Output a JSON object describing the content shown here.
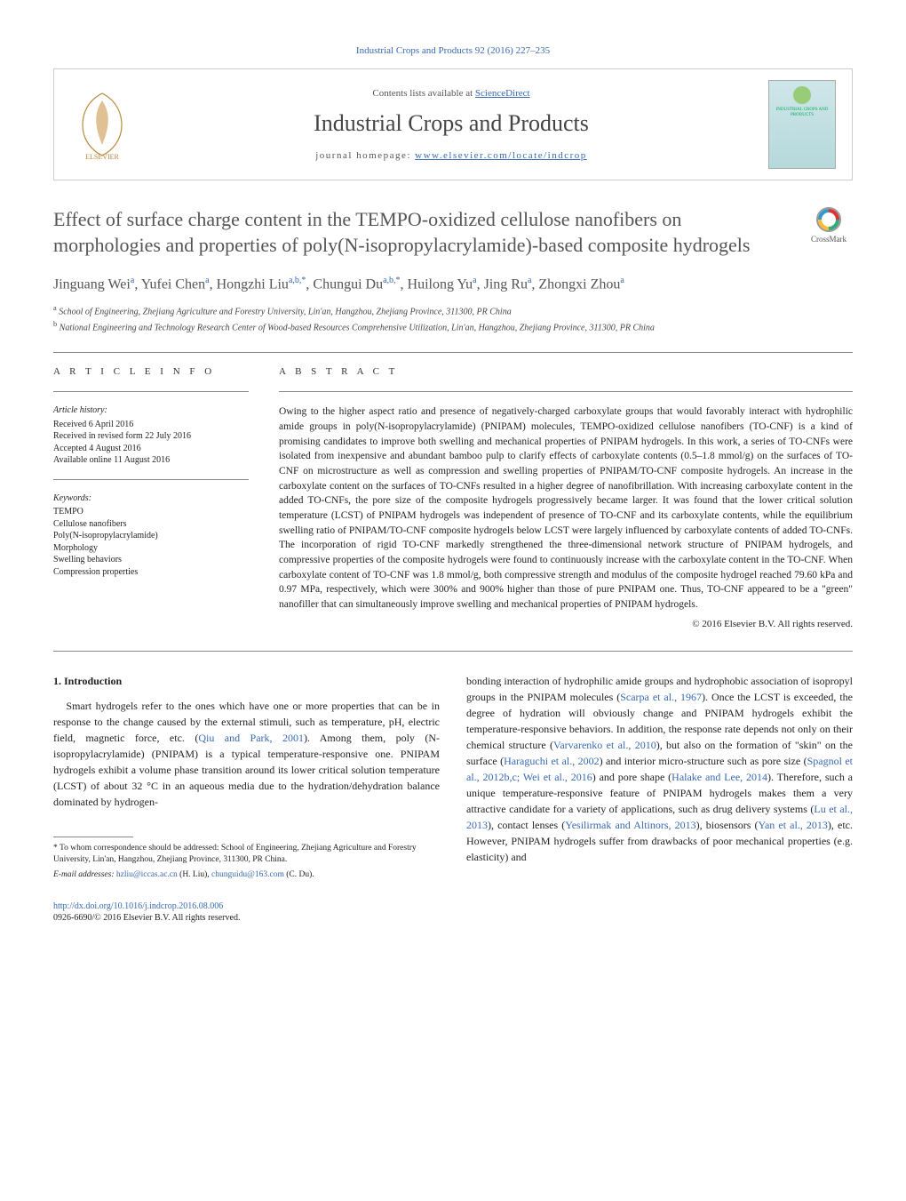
{
  "header": {
    "citation": "Industrial Crops and Products 92 (2016) 227–235",
    "contents_prefix": "Contents lists available at ",
    "contents_link": "ScienceDirect",
    "journal_name": "Industrial Crops and Products",
    "homepage_prefix": "journal homepage: ",
    "homepage_link": "www.elsevier.com/locate/indcrop",
    "cover_text": "INDUSTRIAL CROPS AND PRODUCTS"
  },
  "crossmark_label": "CrossMark",
  "title": "Effect of surface charge content in the TEMPO-oxidized cellulose nanofibers on morphologies and properties of poly(N-isopropylacrylamide)-based composite hydrogels",
  "authors_html": "Jinguang Wei<sup>a</sup>, Yufei Chen<sup>a</sup>, Hongzhi Liu<sup>a,b,*</sup>, Chungui Du<sup>a,b,*</sup>, Huilong Yu<sup>a</sup>, Jing Ru<sup>a</sup>, Zhongxi Zhou<sup>a</sup>",
  "affiliations": {
    "a": "School of Engineering, Zhejiang Agriculture and Forestry University, Lin'an, Hangzhou, Zhejiang Province, 311300, PR China",
    "b": "National Engineering and Technology Research Center of Wood-based Resources Comprehensive Utilization, Lin'an, Hangzhou, Zhejiang Province, 311300, PR China"
  },
  "info": {
    "heading": "A R T I C L E    I N F O",
    "history_label": "Article history:",
    "history": [
      "Received 6 April 2016",
      "Received in revised form 22 July 2016",
      "Accepted 4 August 2016",
      "Available online 11 August 2016"
    ],
    "keywords_label": "Keywords:",
    "keywords": [
      "TEMPO",
      "Cellulose nanofibers",
      "Poly(N-isopropylacrylamide)",
      "Morphology",
      "Swelling behaviors",
      "Compression properties"
    ]
  },
  "abstract": {
    "heading": "A B S T R A C T",
    "text": "Owing to the higher aspect ratio and presence of negatively-charged carboxylate groups that would favorably interact with hydrophilic amide groups in poly(N-isopropylacrylamide) (PNIPAM) molecules, TEMPO-oxidized cellulose nanofibers (TO-CNF) is a kind of promising candidates to improve both swelling and mechanical properties of PNIPAM hydrogels. In this work, a series of TO-CNFs were isolated from inexpensive and abundant bamboo pulp to clarify effects of carboxylate contents (0.5–1.8 mmol/g) on the surfaces of TO-CNF on microstructure as well as compression and swelling properties of PNIPAM/TO-CNF composite hydrogels. An increase in the carboxylate content on the surfaces of TO-CNFs resulted in a higher degree of nanofibrillation. With increasing carboxylate content in the added TO-CNFs, the pore size of the composite hydrogels progressively became larger. It was found that the lower critical solution temperature (LCST) of PNIPAM hydrogels was independent of presence of TO-CNF and its carboxylate contents, while the equilibrium swelling ratio of PNIPAM/TO-CNF composite hydrogels below LCST were largely influenced by carboxylate contents of added TO-CNFs. The incorporation of rigid TO-CNF markedly strengthened the three-dimensional network structure of PNIPAM hydrogels, and compressive properties of the composite hydrogels were found to continuously increase with the carboxylate content in the TO-CNF. When carboxylate content of TO-CNF was 1.8 mmol/g, both compressive strength and modulus of the composite hydrogel reached 79.60 kPa and 0.97 MPa, respectively, which were 300% and 900% higher than those of pure PNIPAM one. Thus, TO-CNF appeared to be a \"green\" nanofiller that can simultaneously improve swelling and mechanical properties of PNIPAM hydrogels.",
    "copyright": "© 2016 Elsevier B.V. All rights reserved."
  },
  "body": {
    "heading": "1. Introduction",
    "left": "Smart hydrogels refer to the ones which have one or more properties that can be in response to the change caused by the external stimuli, such as temperature, pH, electric field, magnetic force, etc. (Qiu and Park, 2001). Among them, poly (N-isopropylacrylamide) (PNIPAM) is a typical temperature-responsive one. PNIPAM hydrogels exhibit a volume phase transition around its lower critical solution temperature (LCST) of about 32 °C in an aqueous media due to the hydration/dehydration balance dominated by hydrogen-",
    "right": "bonding interaction of hydrophilic amide groups and hydrophobic association of isopropyl groups in the PNIPAM molecules (Scarpa et al., 1967). Once the LCST is exceeded, the degree of hydration will obviously change and PNIPAM hydrogels exhibit the temperature-responsive behaviors. In addition, the response rate depends not only on their chemical structure (Varvarenko et al., 2010), but also on the formation of \"skin\" on the surface (Haraguchi et al., 2002) and interior micro-structure such as pore size (Spagnol et al., 2012b,c; Wei et al., 2016) and pore shape (Halake and Lee, 2014). Therefore, such a unique temperature-responsive feature of PNIPAM hydrogels makes them a very attractive candidate for a variety of applications, such as drug delivery systems (Lu et al., 2013), contact lenses (Yesilirmak and Altinors, 2013), biosensors (Yan et al., 2013), etc. However, PNIPAM hydrogels suffer from drawbacks of poor mechanical properties (e.g. elasticity) and",
    "left_links": [
      "Qiu and Park, 2001"
    ],
    "right_links": [
      "Scarpa et al., 1967",
      "Varvarenko et al., 2010",
      "Haraguchi et al., 2002",
      "Spagnol et al., 2012b,c; Wei et al., 2016",
      "Halake and Lee, 2014",
      "Lu et al., 2013",
      "Yesilirmak and Altinors, 2013",
      "Yan et al., 2013"
    ]
  },
  "footnotes": {
    "corr": "* To whom correspondence should be addressed: School of Engineering, Zhejiang Agriculture and Forestry University, Lin'an, Hangzhou, Zhejiang Province, 311300, PR China.",
    "email_label": "E-mail addresses: ",
    "email1": "hzliu@iccas.ac.cn",
    "email1_who": " (H. Liu), ",
    "email2": "chunguidu@163.com",
    "email2_who": " (C. Du)."
  },
  "footer": {
    "doi": "http://dx.doi.org/10.1016/j.indcrop.2016.08.006",
    "issn_copy": "0926-6690/© 2016 Elsevier B.V. All rights reserved."
  },
  "colors": {
    "link": "#3969b0",
    "text": "#222",
    "heading_gray": "#555"
  }
}
